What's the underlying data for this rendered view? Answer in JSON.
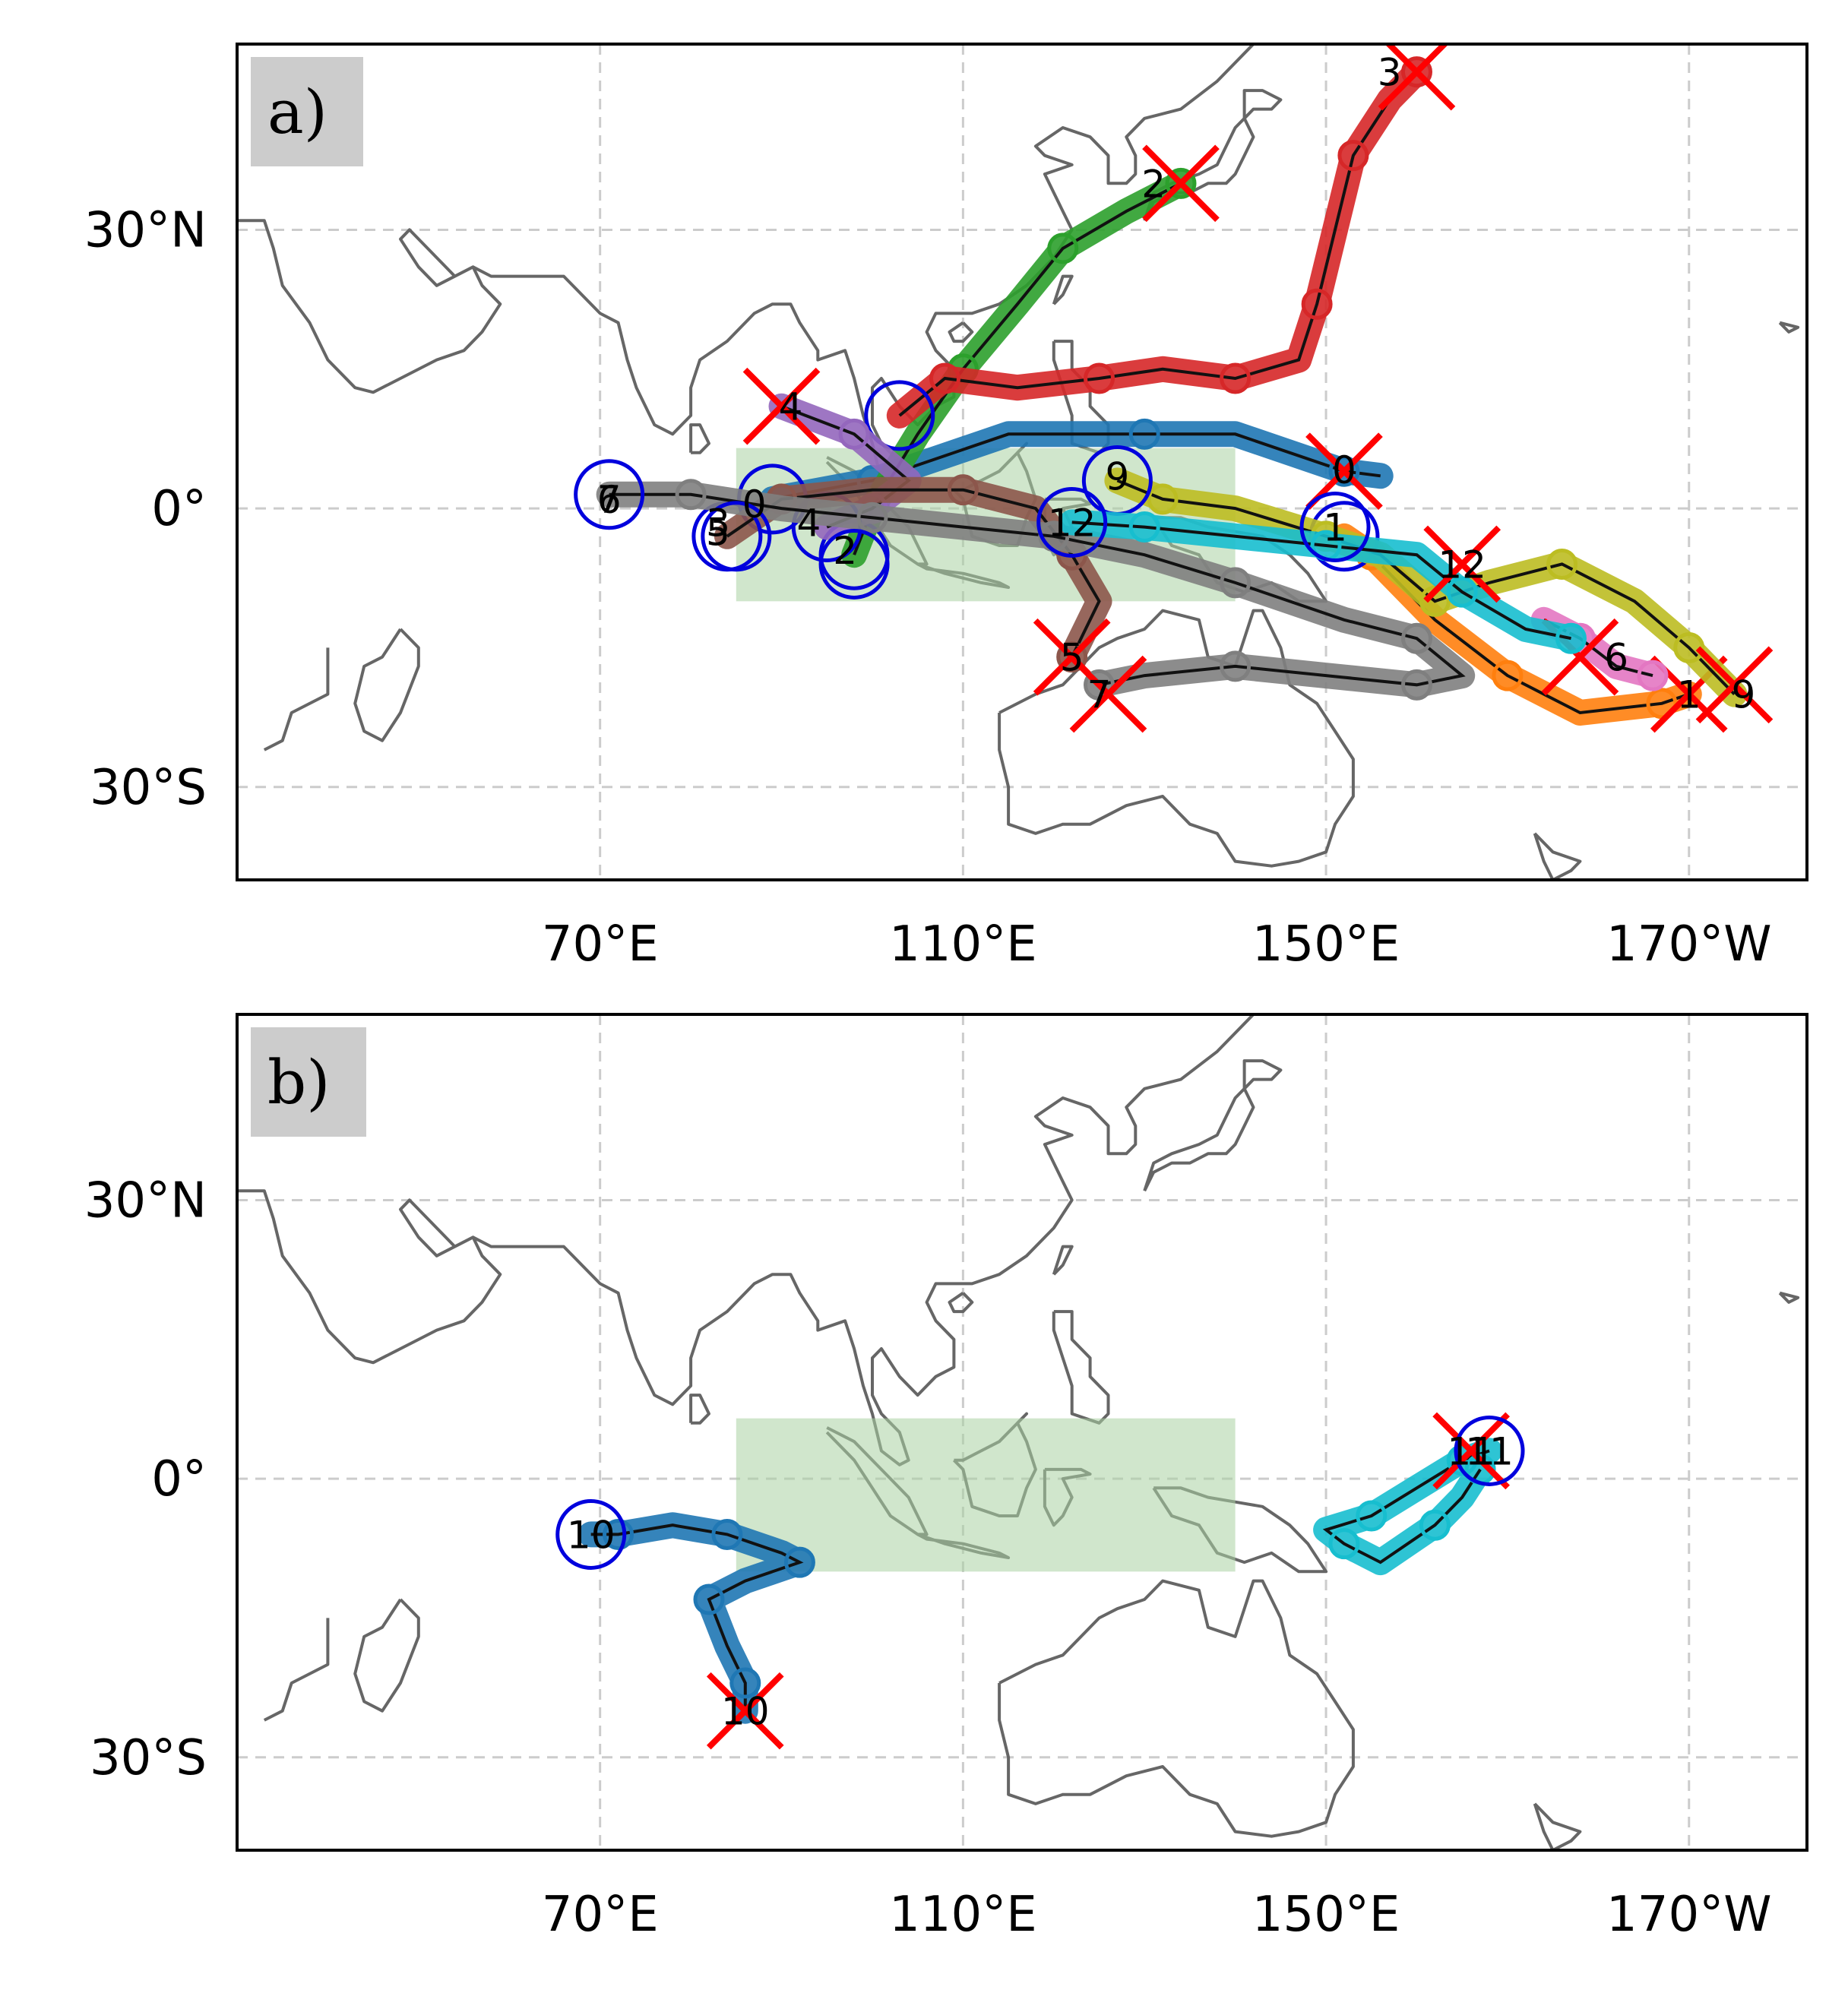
{
  "map": {
    "lon_range": [
      30,
      203
    ],
    "lat_range": [
      -40,
      50
    ],
    "grid": true,
    "grid_style": "dashed",
    "x_ticks": [
      {
        "lon": 70,
        "label": "70°E"
      },
      {
        "lon": 110,
        "label": "110°E"
      },
      {
        "lon": 150,
        "label": "150°E"
      },
      {
        "lon": 190,
        "label": "170°W"
      }
    ],
    "y_ticks": [
      {
        "lat": 30,
        "label": "30°N"
      },
      {
        "lat": 0,
        "label": "0°"
      },
      {
        "lat": -30,
        "label": "30°S"
      }
    ],
    "coast_color": "#666666",
    "region": {
      "lon0": 85,
      "lon1": 140,
      "lat0": -10,
      "lat1": 6.5,
      "color": "#a9d1a3"
    },
    "start_marker_color": "#0000dd",
    "end_marker_color": "#ff0000"
  },
  "panels": [
    {
      "label": "a)",
      "tracks": [
        {
          "id": "0",
          "color": "#1f77b4",
          "points": [
            [
              89,
              1
            ],
            [
              100,
              3
            ],
            [
              115,
              8
            ],
            [
              130,
              8
            ],
            [
              140,
              8
            ],
            [
              152,
              4
            ],
            [
              156,
              3.5
            ]
          ],
          "start": [
            89,
            1
          ],
          "end": [
            152,
            4
          ]
        },
        {
          "id": "1",
          "color": "#ff7f0e",
          "points": [
            [
              152,
              -3
            ],
            [
              155,
              -5
            ],
            [
              162,
              -12
            ],
            [
              170,
              -18
            ],
            [
              178,
              -22
            ],
            [
              187,
              -21
            ],
            [
              190,
              -20
            ]
          ],
          "start": [
            152,
            -3
          ],
          "end": [
            190,
            -20
          ]
        },
        {
          "id": "2",
          "color": "#2ca02c",
          "points": [
            [
              98,
              -5
            ],
            [
              100,
              0
            ],
            [
              105,
              8
            ],
            [
              110,
              15
            ],
            [
              116,
              22
            ],
            [
              121,
              28
            ],
            [
              128,
              32
            ],
            [
              134,
              35
            ]
          ],
          "start": [
            98,
            -5
          ],
          "end": [
            134,
            35
          ]
        },
        {
          "id": "3",
          "color": "#d62728",
          "points": [
            [
              103,
              10
            ],
            [
              108,
              14
            ],
            [
              116,
              13
            ],
            [
              125,
              14
            ],
            [
              132,
              15
            ],
            [
              140,
              14
            ],
            [
              147,
              16
            ],
            [
              149,
              22
            ],
            [
              151,
              30
            ],
            [
              153,
              38
            ],
            [
              157,
              44
            ],
            [
              160,
              47
            ]
          ],
          "start": [
            103,
            10
          ],
          "end": [
            160,
            47
          ]
        },
        {
          "id": "4",
          "color": "#9467bd",
          "points": [
            [
              95,
              -2
            ],
            [
              100,
              0
            ],
            [
              104,
              3
            ],
            [
              98,
              8
            ],
            [
              90,
              11
            ]
          ],
          "start": [
            95,
            -2
          ],
          "end": [
            90,
            11
          ]
        },
        {
          "id": "5",
          "color": "#8c564b",
          "points": [
            [
              84,
              -3
            ],
            [
              90,
              1
            ],
            [
              100,
              2
            ],
            [
              110,
              2
            ],
            [
              118,
              0
            ],
            [
              122,
              -5
            ],
            [
              125,
              -10
            ],
            [
              122,
              -16
            ]
          ],
          "start": [
            84,
            -3
          ],
          "end": [
            122,
            -16
          ]
        },
        {
          "id": "6",
          "color": "#e377c2",
          "points": [
            [
              174,
              -12
            ],
            [
              178,
              -14
            ],
            [
              182,
              -17
            ],
            [
              186,
              -18
            ]
          ],
          "start": null,
          "end": [
            178,
            -16
          ]
        },
        {
          "id": "7",
          "color": "#7f7f7f",
          "points": [
            [
              71,
              1.5
            ],
            [
              80,
              1.5
            ],
            [
              90,
              0
            ],
            [
              100,
              -1
            ],
            [
              110,
              -2
            ],
            [
              120,
              -3
            ],
            [
              130,
              -5
            ],
            [
              140,
              -8
            ],
            [
              152,
              -12
            ],
            [
              160,
              -14
            ],
            [
              165,
              -18
            ],
            [
              160,
              -19
            ],
            [
              150,
              -18
            ],
            [
              140,
              -17
            ],
            [
              130,
              -18
            ],
            [
              125,
              -19
            ]
          ],
          "start": [
            71,
            1.5
          ],
          "end": [
            126,
            -20
          ]
        },
        {
          "id": "9",
          "color": "#bcbd22",
          "points": [
            [
              127,
              3
            ],
            [
              132,
              1
            ],
            [
              140,
              0
            ],
            [
              150,
              -3
            ],
            [
              156,
              -5
            ],
            [
              162,
              -10
            ],
            [
              168,
              -8
            ],
            [
              176,
              -6
            ],
            [
              184,
              -10
            ],
            [
              190,
              -15
            ],
            [
              195,
              -20
            ]
          ],
          "start": [
            127,
            3
          ],
          "end": [
            195,
            -19
          ]
        },
        {
          "id": "12",
          "color": "#17becf",
          "points": [
            [
              122,
              -1.5
            ],
            [
              130,
              -2
            ],
            [
              140,
              -3
            ],
            [
              150,
              -4
            ],
            [
              160,
              -5
            ],
            [
              165,
              -9
            ],
            [
              172,
              -13
            ],
            [
              177,
              -14
            ]
          ],
          "start": [
            122,
            -1.5
          ],
          "end": [
            165,
            -6
          ]
        }
      ],
      "extra_starts": [
        [
          85,
          -3
        ],
        [
          98,
          -6
        ],
        [
          151,
          -2
        ]
      ],
      "labels": [
        {
          "text": "0",
          "at": [
            152,
            4.2
          ]
        },
        {
          "text": "0",
          "at": [
            87,
            0.5
          ]
        },
        {
          "text": "1",
          "at": [
            151,
            -2
          ]
        },
        {
          "text": "1",
          "at": [
            190,
            -20
          ]
        },
        {
          "text": "2",
          "at": [
            131,
            35
          ]
        },
        {
          "text": "2",
          "at": [
            97,
            -4.5
          ]
        },
        {
          "text": "3",
          "at": [
            157,
            47
          ]
        },
        {
          "text": "3",
          "at": [
            83,
            -1.5
          ]
        },
        {
          "text": "4",
          "at": [
            91,
            11
          ]
        },
        {
          "text": "4",
          "at": [
            93,
            -1.5
          ]
        },
        {
          "text": "5",
          "at": [
            83,
            -2.5
          ]
        },
        {
          "text": "5",
          "at": [
            122,
            -16
          ]
        },
        {
          "text": "6",
          "at": [
            71,
            1
          ]
        },
        {
          "text": "6",
          "at": [
            182,
            -16
          ]
        },
        {
          "text": "7",
          "at": [
            71,
            1
          ]
        },
        {
          "text": "7",
          "at": [
            125,
            -20
          ]
        },
        {
          "text": "9",
          "at": [
            127,
            3.5
          ]
        },
        {
          "text": "9",
          "at": [
            196,
            -20
          ]
        },
        {
          "text": "12",
          "at": [
            122,
            -1.5
          ]
        },
        {
          "text": "12",
          "at": [
            165,
            -6
          ]
        }
      ]
    },
    {
      "label": "b)",
      "tracks": [
        {
          "id": "10",
          "color": "#1f77b4",
          "points": [
            [
              69,
              -6
            ],
            [
              72,
              -6
            ],
            [
              78,
              -5
            ],
            [
              84,
              -6
            ],
            [
              90,
              -8
            ],
            [
              92,
              -9
            ],
            [
              86,
              -11
            ],
            [
              82,
              -13
            ],
            [
              84,
              -18
            ],
            [
              86,
              -22
            ],
            [
              86,
              -25
            ]
          ],
          "start": [
            69,
            -6
          ],
          "end": [
            86,
            -25
          ]
        },
        {
          "id": "11",
          "color": "#17becf",
          "points": [
            [
              168,
              3
            ],
            [
              165,
              2
            ],
            [
              160,
              -1
            ],
            [
              155,
              -4
            ],
            [
              150,
              -5.5
            ],
            [
              152,
              -7
            ],
            [
              156,
              -9
            ],
            [
              162,
              -5
            ],
            [
              165,
              -2
            ],
            [
              167,
              1
            ]
          ],
          "start": [
            168,
            3
          ],
          "end": [
            166,
            3
          ]
        }
      ],
      "extra_starts": [],
      "labels": [
        {
          "text": "10",
          "at": [
            69,
            -6
          ]
        },
        {
          "text": "10",
          "at": [
            86,
            -25
          ]
        },
        {
          "text": "11",
          "at": [
            166,
            3
          ]
        },
        {
          "text": "11",
          "at": [
            168,
            3
          ]
        }
      ]
    }
  ]
}
